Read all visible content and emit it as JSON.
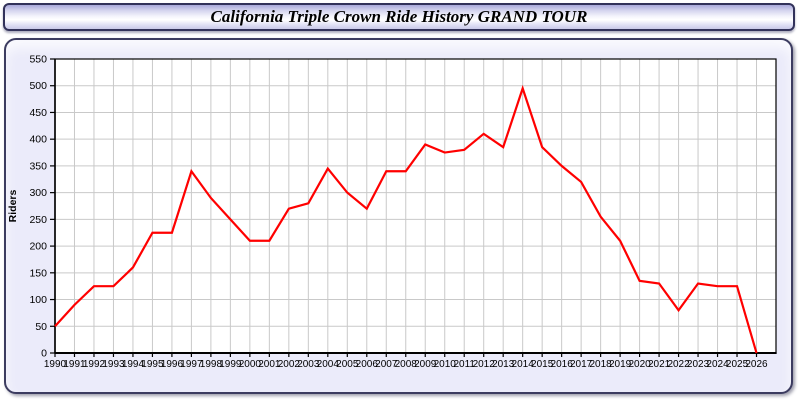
{
  "window": {
    "title": "California Triple Crown Ride History GRAND TOUR"
  },
  "colors": {
    "line": "#ff0000",
    "grid": "#c9c9c9",
    "plot_background": "#ffffff",
    "panel_background": "#ebebfa",
    "axis": "#000000"
  },
  "chart_data": {
    "type": "line",
    "title": "California Triple Crown Ride History GRAND TOUR",
    "xlabel": "",
    "ylabel": "Riders",
    "legend_position": "none",
    "grid": true,
    "ylim": [
      0,
      550
    ],
    "ytick_step": 50,
    "x": [
      1990,
      1991,
      1992,
      1993,
      1994,
      1995,
      1996,
      1997,
      1998,
      1999,
      2000,
      2001,
      2002,
      2003,
      2004,
      2005,
      2006,
      2007,
      2008,
      2009,
      2010,
      2011,
      2012,
      2013,
      2014,
      2015,
      2016,
      2017,
      2018,
      2019,
      2020,
      2021,
      2022,
      2023,
      2024,
      2025,
      2026
    ],
    "series": [
      {
        "name": "Riders",
        "color": "#ff0000",
        "values": [
          50,
          90,
          125,
          125,
          160,
          225,
          225,
          340,
          290,
          250,
          210,
          210,
          270,
          280,
          345,
          300,
          270,
          340,
          340,
          390,
          375,
          380,
          410,
          385,
          495,
          385,
          350,
          320,
          255,
          210,
          135,
          130,
          80,
          130,
          125,
          125,
          0
        ]
      }
    ]
  }
}
